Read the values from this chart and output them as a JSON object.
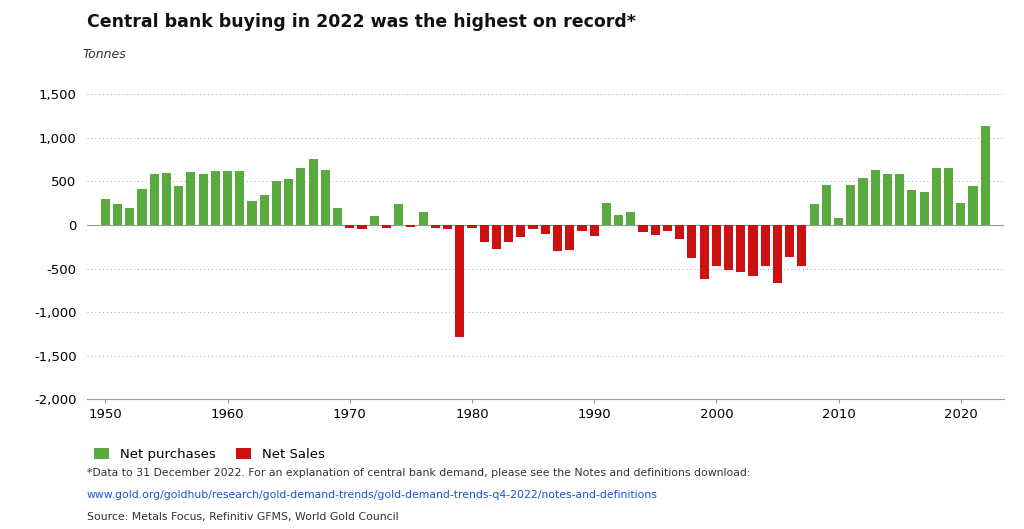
{
  "title": "Central bank buying in 2022 was the highest on record*",
  "ylabel": "Tonnes",
  "background_color": "#ffffff",
  "bar_color_positive": "#5aab3f",
  "bar_color_negative": "#cc1111",
  "ylim": [
    -2000,
    1700
  ],
  "yticks": [
    -2000,
    -1500,
    -1000,
    -500,
    0,
    500,
    1000,
    1500
  ],
  "footnote1": "*Data to 31 December 2022. For an explanation of central bank demand, please see the Notes and definitions download:",
  "footnote2": "www.gold.org/goldhub/research/gold-demand-trends/gold-demand-trends-q4-2022/notes-and-definitions",
  "footnote3": "Source: Metals Focus, Refinitiv GFMS, World Gold Council",
  "legend_green": "Net purchases",
  "legend_red": "Net Sales",
  "years": [
    1950,
    1951,
    1952,
    1953,
    1954,
    1955,
    1956,
    1957,
    1958,
    1959,
    1960,
    1961,
    1962,
    1963,
    1964,
    1965,
    1966,
    1967,
    1968,
    1969,
    1970,
    1971,
    1972,
    1973,
    1974,
    1975,
    1976,
    1977,
    1978,
    1979,
    1980,
    1981,
    1982,
    1983,
    1984,
    1985,
    1986,
    1987,
    1988,
    1989,
    1990,
    1991,
    1992,
    1993,
    1994,
    1995,
    1996,
    1997,
    1998,
    1999,
    2000,
    2001,
    2002,
    2003,
    2004,
    2005,
    2006,
    2007,
    2008,
    2009,
    2010,
    2011,
    2012,
    2013,
    2014,
    2015,
    2016,
    2017,
    2018,
    2019,
    2020,
    2021,
    2022
  ],
  "values": [
    300,
    245,
    195,
    415,
    590,
    600,
    450,
    605,
    590,
    615,
    615,
    620,
    280,
    345,
    500,
    525,
    655,
    755,
    630,
    190,
    -30,
    -50,
    100,
    -35,
    240,
    -20,
    150,
    -35,
    -50,
    -1280,
    -30,
    -200,
    -280,
    -190,
    -140,
    -45,
    -100,
    -300,
    -290,
    -65,
    -130,
    250,
    110,
    150,
    -80,
    -120,
    -70,
    -165,
    -375,
    -620,
    -470,
    -520,
    -540,
    -590,
    -470,
    -660,
    -365,
    -475,
    235,
    454,
    77,
    456,
    544,
    625,
    583,
    588,
    396,
    375,
    651,
    650,
    255,
    450,
    1136
  ]
}
